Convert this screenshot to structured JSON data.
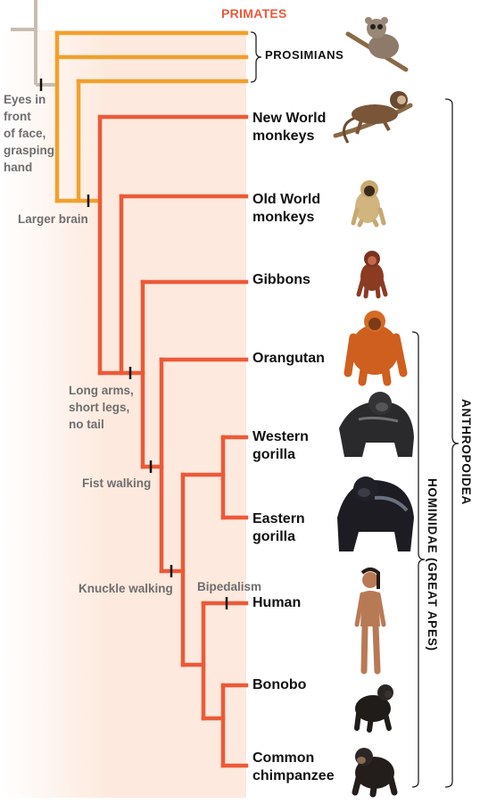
{
  "header": {
    "primates": "PRIMATES"
  },
  "groups": {
    "prosimians": "PROSIMIANS",
    "anthropoidea": "ANTHROPOIDEA",
    "hominidae": "HOMINIDAE (GREAT APES)"
  },
  "taxa": [
    {
      "key": "new-world-monkeys",
      "label": "New World\nmonkeys"
    },
    {
      "key": "old-world-monkeys",
      "label": "Old World\nmonkeys"
    },
    {
      "key": "gibbons",
      "label": "Gibbons"
    },
    {
      "key": "orangutan",
      "label": "Orangutan"
    },
    {
      "key": "western-gorilla",
      "label": "Western\ngorilla"
    },
    {
      "key": "eastern-gorilla",
      "label": "Eastern\ngorilla"
    },
    {
      "key": "human",
      "label": "Human"
    },
    {
      "key": "bonobo",
      "label": "Bonobo"
    },
    {
      "key": "common-chimpanzee",
      "label": "Common\nchimpanzee"
    }
  ],
  "traits": {
    "eyes": "Eyes in\nfront\nof face,\ngrasping\nhand",
    "brain": "Larger brain",
    "arms": "Long arms,\nshort legs,\nno tail",
    "fist": "Fist walking",
    "knuckle": "Knuckle walking",
    "bipedalism": "Bipedalism"
  },
  "colors": {
    "prosimian_branch": "#f2a02c",
    "anthropoid_branch": "#ec5a38",
    "root_branch": "#c9bdb0",
    "panel": "#fde9dd",
    "header": "#ea5a3c",
    "trait_text": "#6e6e6e"
  }
}
